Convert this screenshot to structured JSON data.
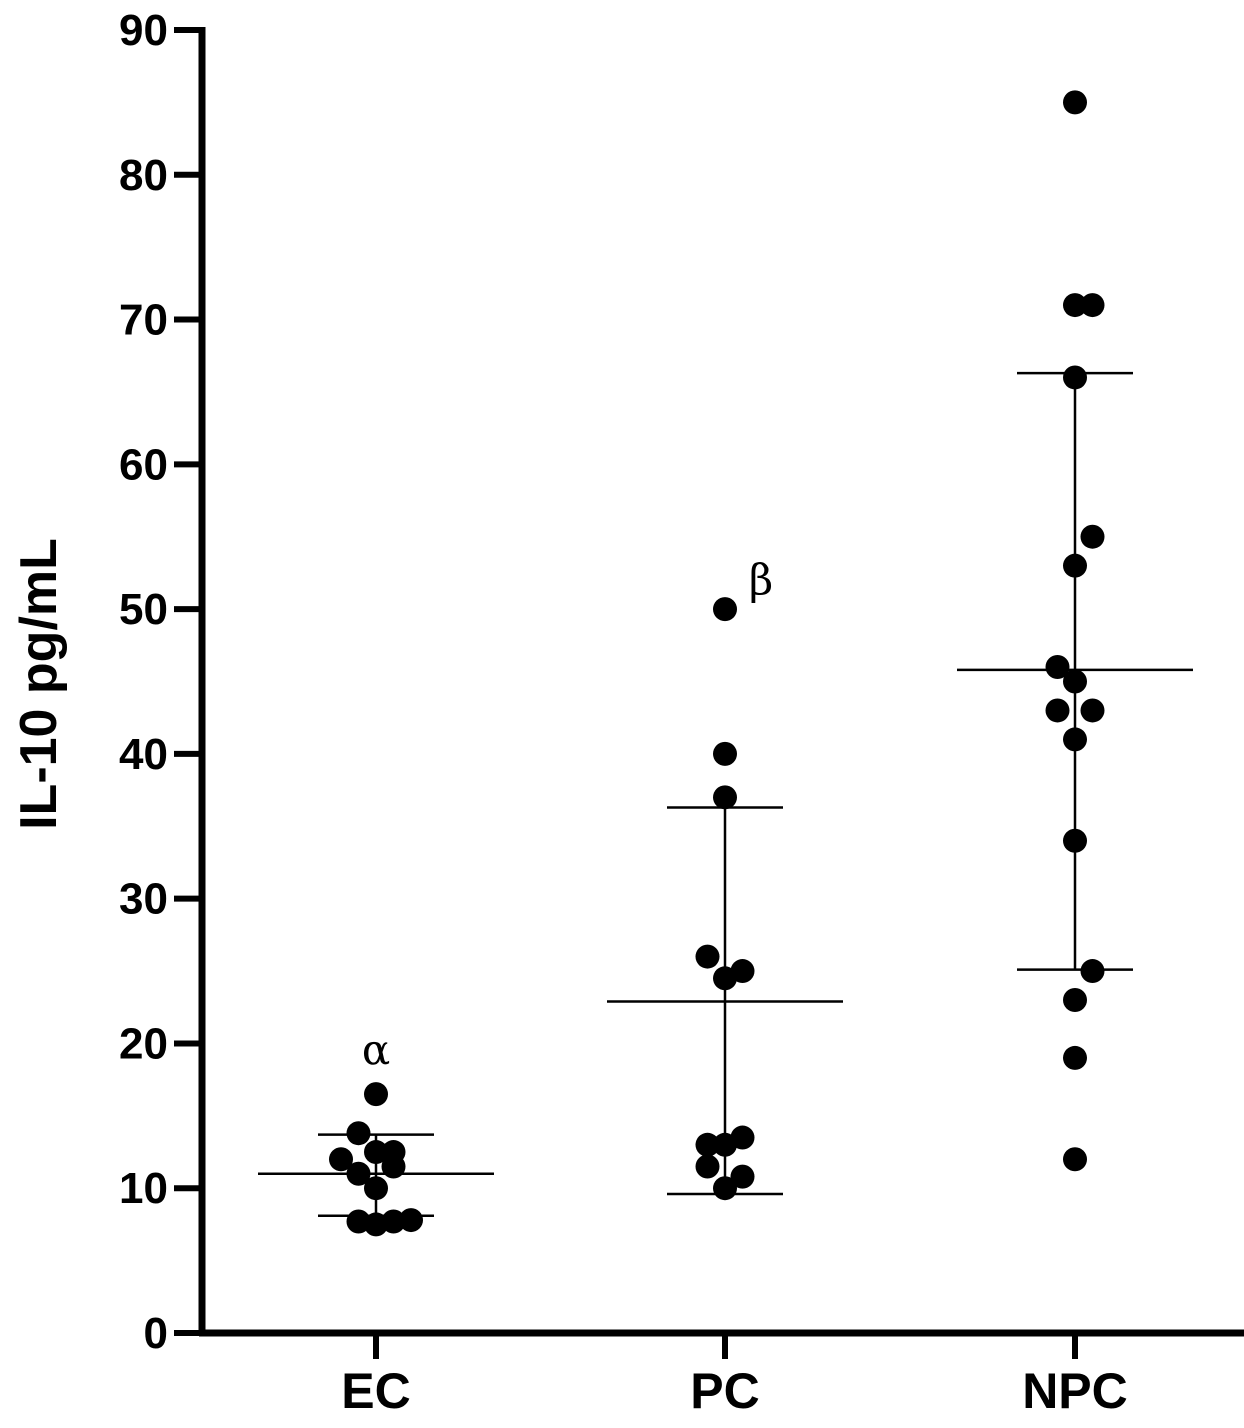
{
  "chart_data": {
    "type": "scatter",
    "ylabel": "IL-10 pg/mL",
    "xlabel": "",
    "ylim": [
      0,
      90
    ],
    "yticks": [
      "0",
      "10",
      "20",
      "30",
      "40",
      "50",
      "60",
      "70",
      "80",
      "90"
    ],
    "categories": [
      "EC",
      "PC",
      "NPC"
    ],
    "grid": false,
    "groups": [
      {
        "category": "EC",
        "points": [
          {
            "offset": -0.5,
            "y": 12.0
          },
          {
            "offset": -0.25,
            "y": 13.8
          },
          {
            "offset": 0.0,
            "y": 16.5
          },
          {
            "offset": 0.0,
            "y": 12.5
          },
          {
            "offset": 0.25,
            "y": 12.5
          },
          {
            "offset": -0.25,
            "y": 11.0
          },
          {
            "offset": 0.25,
            "y": 11.5
          },
          {
            "offset": 0.0,
            "y": 10.0
          },
          {
            "offset": -0.25,
            "y": 7.7
          },
          {
            "offset": 0.0,
            "y": 7.5
          },
          {
            "offset": 0.25,
            "y": 7.7
          },
          {
            "offset": 0.5,
            "y": 7.8
          }
        ],
        "mean": 11.0,
        "sd_upper": 13.7,
        "sd_lower": 8.1,
        "annotation": "α",
        "annotation_y": 19.5
      },
      {
        "category": "PC",
        "points": [
          {
            "offset": 0.0,
            "y": 50.0
          },
          {
            "offset": 0.0,
            "y": 40.0
          },
          {
            "offset": 0.0,
            "y": 37.0
          },
          {
            "offset": -0.25,
            "y": 26.0
          },
          {
            "offset": 0.0,
            "y": 24.5
          },
          {
            "offset": 0.25,
            "y": 25.0
          },
          {
            "offset": -0.25,
            "y": 13.0
          },
          {
            "offset": 0.0,
            "y": 13.0
          },
          {
            "offset": 0.25,
            "y": 13.5
          },
          {
            "offset": -0.25,
            "y": 11.5
          },
          {
            "offset": 0.25,
            "y": 10.8
          },
          {
            "offset": 0.0,
            "y": 10.0
          }
        ],
        "mean": 22.9,
        "sd_upper": 36.3,
        "sd_lower": 9.6,
        "annotation": "β",
        "annotation_y": 52.0
      },
      {
        "category": "NPC",
        "points": [
          {
            "offset": 0.0,
            "y": 85.0
          },
          {
            "offset": 0.0,
            "y": 71.0
          },
          {
            "offset": 0.25,
            "y": 71.0
          },
          {
            "offset": 0.0,
            "y": 66.0
          },
          {
            "offset": 0.25,
            "y": 55.0
          },
          {
            "offset": 0.0,
            "y": 53.0
          },
          {
            "offset": -0.25,
            "y": 46.0
          },
          {
            "offset": 0.0,
            "y": 45.0
          },
          {
            "offset": -0.25,
            "y": 43.0
          },
          {
            "offset": 0.25,
            "y": 43.0
          },
          {
            "offset": 0.0,
            "y": 41.0
          },
          {
            "offset": 0.0,
            "y": 34.0
          },
          {
            "offset": 0.25,
            "y": 25.0
          },
          {
            "offset": 0.0,
            "y": 23.0
          },
          {
            "offset": 0.0,
            "y": 19.0
          },
          {
            "offset": 0.0,
            "y": 12.0
          }
        ],
        "mean": 45.8,
        "sd_upper": 66.3,
        "sd_lower": 25.1,
        "annotation": "",
        "annotation_y": null
      }
    ]
  }
}
